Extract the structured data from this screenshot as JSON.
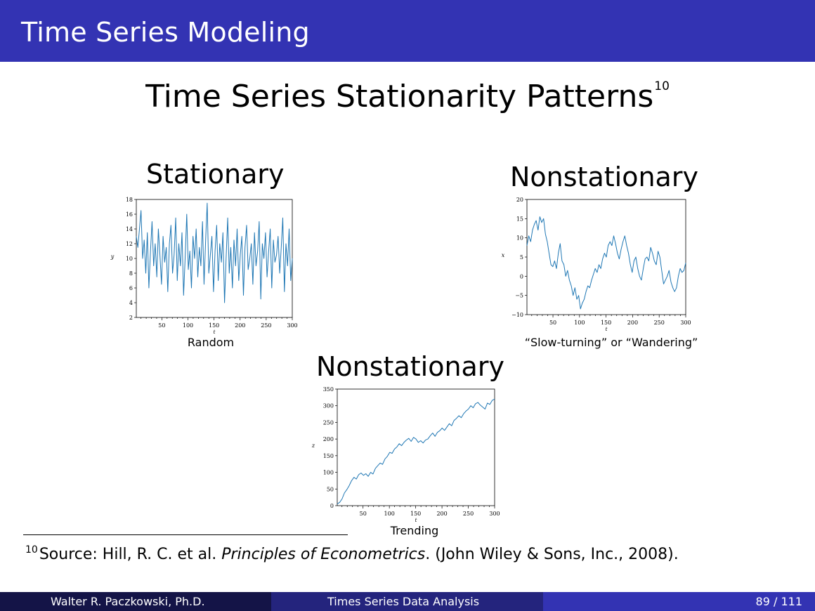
{
  "header": {
    "frame_title": "Time Series Modeling",
    "slide_title": "Time Series Stationarity Patterns",
    "title_footnote_mark": "10"
  },
  "panels": {
    "stationary_heading": "Stationary",
    "nonstationary_heading_1": "Nonstationary",
    "nonstationary_heading_2": "Nonstationary",
    "random_caption": "Random",
    "wandering_caption": "“Slow-turning” or “Wandering”",
    "trending_caption": "Trending"
  },
  "footnote": {
    "mark": "10",
    "text_before": "Source: Hill, R. C. et al. ",
    "book": "Principles of Econometrics",
    "text_after": ". (John Wiley & Sons, Inc., 2008)."
  },
  "footer": {
    "author": "Walter R. Paczkowski, Ph.D.",
    "course": "Times Series Data Analysis",
    "page": "89 / 111"
  },
  "colors": {
    "frame_blue": "#3333b3",
    "footer_dark": "#141447",
    "footer_mid": "#24247d",
    "footer_light": "#3333b3",
    "series_line": "#1f77b4"
  },
  "chart_data": [
    {
      "type": "line",
      "ylabel": "y",
      "xlabel": "t",
      "xlim": [
        1,
        300
      ],
      "ylim": [
        2,
        18
      ],
      "x_ticks": [
        50,
        100,
        150,
        200,
        250,
        300
      ],
      "y_ticks": [
        2,
        4,
        6,
        8,
        10,
        12,
        14,
        16,
        18
      ],
      "series": [
        {
          "values": [
            13,
            11.5,
            14,
            16.5,
            10,
            12.5,
            8,
            13.5,
            6,
            11,
            15,
            9,
            12,
            7.5,
            14,
            10.5,
            6.5,
            13,
            9.5,
            11.5,
            5.5,
            12,
            14.5,
            8,
            10.5,
            15.5,
            7,
            12,
            9,
            13.5,
            5,
            10,
            16,
            8.5,
            11,
            6,
            13,
            10,
            14,
            7.5,
            11.5,
            9,
            15,
            6.5,
            12.5,
            17.5,
            8,
            10.5,
            13,
            5.5,
            11,
            14.5,
            7,
            12,
            9.5,
            13.5,
            4,
            10,
            15.5,
            8,
            11.5,
            6,
            12.5,
            9,
            14,
            7,
            10.5,
            13,
            5,
            11.5,
            14.5,
            8.5,
            10,
            12,
            6.5,
            13.5,
            9,
            11,
            15,
            4.5,
            12,
            10,
            13.5,
            7.5,
            11,
            14,
            6,
            12.5,
            9.5,
            10.5,
            13,
            8,
            11.5,
            15.5,
            5.5,
            12,
            9,
            14,
            7,
            10
          ]
        }
      ]
    },
    {
      "type": "line",
      "ylabel": "x",
      "xlabel": "t",
      "xlim": [
        1,
        300
      ],
      "ylim": [
        -10,
        20
      ],
      "x_ticks": [
        50,
        100,
        150,
        200,
        250,
        300
      ],
      "y_ticks": [
        -10,
        -5,
        0,
        5,
        10,
        15,
        20
      ],
      "series": [
        {
          "values": [
            8,
            10.5,
            9,
            12,
            13.5,
            14.5,
            12,
            15.5,
            14,
            15,
            11,
            9,
            6,
            3,
            2.5,
            4,
            2,
            6,
            8.5,
            4,
            3,
            0,
            1.5,
            -1,
            -2.5,
            -5,
            -3,
            -6,
            -5,
            -8.5,
            -7,
            -6,
            -4,
            -2.5,
            -3,
            -1,
            0.5,
            2,
            1,
            3,
            2,
            4.5,
            6,
            5,
            8,
            9,
            8,
            10.5,
            8.5,
            6,
            4.5,
            7,
            9,
            10.5,
            8,
            6,
            3,
            1,
            4,
            5,
            2,
            0,
            -1,
            2,
            4.5,
            5,
            4,
            7.5,
            6,
            4,
            3,
            6.5,
            5,
            1.5,
            -2,
            -1,
            0,
            1.5,
            -1.5,
            -3,
            -4,
            -3,
            0,
            2,
            1,
            1.5,
            3.5
          ]
        }
      ]
    },
    {
      "type": "line",
      "ylabel": "z",
      "xlabel": "t",
      "xlim": [
        1,
        300
      ],
      "ylim": [
        0,
        350
      ],
      "x_ticks": [
        50,
        100,
        150,
        200,
        250,
        300
      ],
      "y_ticks": [
        0,
        50,
        100,
        150,
        200,
        250,
        300,
        350
      ],
      "series": [
        {
          "values": [
            5,
            10,
            20,
            38,
            48,
            60,
            75,
            85,
            80,
            93,
            98,
            91,
            96,
            88,
            100,
            95,
            112,
            120,
            128,
            124,
            140,
            148,
            160,
            157,
            170,
            176,
            186,
            180,
            190,
            197,
            202,
            193,
            205,
            200,
            190,
            195,
            188,
            197,
            200,
            210,
            218,
            208,
            220,
            225,
            233,
            226,
            236,
            246,
            240,
            256,
            262,
            270,
            264,
            276,
            284,
            290,
            300,
            294,
            306,
            310,
            302,
            296,
            290,
            308,
            304,
            316,
            320
          ]
        }
      ]
    }
  ]
}
